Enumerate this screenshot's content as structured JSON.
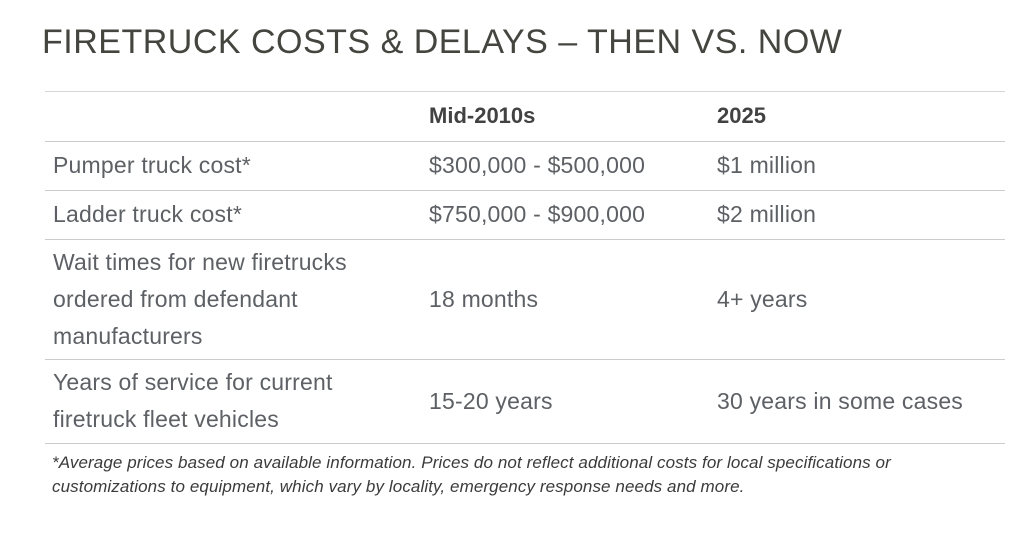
{
  "page_title": "FIRETRUCK COSTS & DELAYS – THEN VS. NOW",
  "colors": {
    "background": "#ffffff",
    "title_text": "#454540",
    "header_text": "#424242",
    "body_text": "#5d6064",
    "footnote_text": "#3b3b3b",
    "divider": "#cccccc"
  },
  "chart_data": {
    "type": "table",
    "title": "FIRETRUCK COSTS & DELAYS – THEN VS. NOW",
    "columns": [
      "",
      "Mid-2010s",
      "2025"
    ],
    "rows": [
      [
        "Pumper truck cost*",
        "$300,000 - $500,000",
        "$1 million"
      ],
      [
        "Ladder truck cost*",
        "$750,000 - $900,000",
        "$2 million"
      ],
      [
        "Wait times for new firetrucks ordered from defendant manufacturers",
        "18 months",
        "4+ years"
      ],
      [
        "Years of service for current firetruck fleet vehicles",
        "15-20 years",
        "30 years in some cases"
      ]
    ],
    "footnote": "*Average prices based on available information. Prices do not reflect additional costs for local specifications or customizations to equipment, which vary by locality, emergency response needs and more.",
    "layout_hints": {
      "grid": "horizontal row dividers only",
      "header_style": "bold",
      "footnote_style": "italic"
    }
  }
}
